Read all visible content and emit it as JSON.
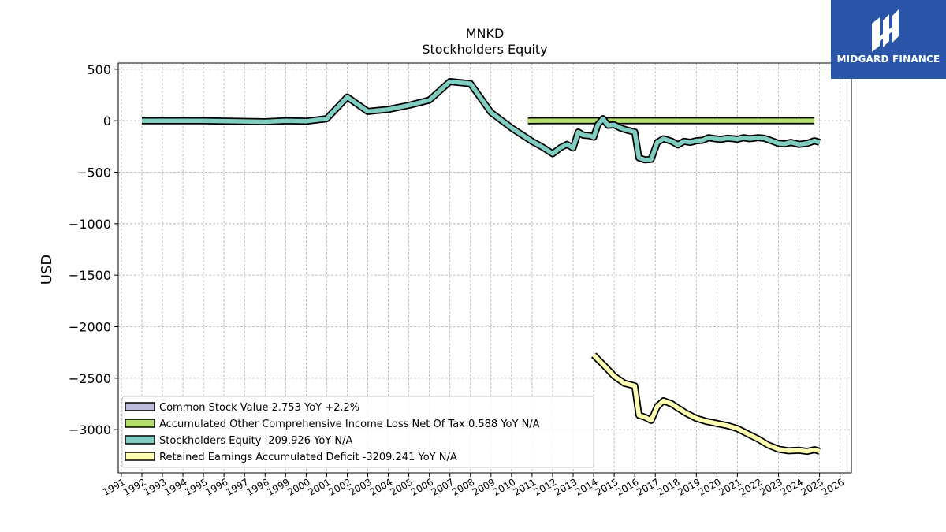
{
  "chart_data": {
    "type": "line",
    "title": "MNKD",
    "subtitle": "Stockholders  Equity",
    "ylabel": "USD",
    "xlabel": "",
    "xlim": [
      1990.85,
      2026.55
    ],
    "ylim": [
      -3420,
      560
    ],
    "grid": true,
    "legend_position": "lower-left",
    "y_ticks": [
      500,
      0,
      -500,
      -1000,
      -1500,
      -2000,
      -2500,
      -3000
    ],
    "y_tick_labels": [
      "500",
      "0",
      "−500",
      "−1000",
      "−1500",
      "−2000",
      "−2500",
      "−3000"
    ],
    "x_ticks": [
      1991,
      1992,
      1993,
      1994,
      1995,
      1996,
      1997,
      1998,
      1999,
      2000,
      2001,
      2002,
      2003,
      2004,
      2005,
      2006,
      2007,
      2008,
      2009,
      2010,
      2011,
      2012,
      2013,
      2014,
      2015,
      2016,
      2017,
      2018,
      2019,
      2020,
      2021,
      2022,
      2023,
      2024,
      2025,
      2026
    ],
    "x_tick_labels": [
      "1991",
      "1992",
      "1993",
      "1994",
      "1995",
      "1996",
      "1997",
      "1998",
      "1999",
      "2000",
      "2001",
      "2002",
      "2003",
      "2004",
      "2005",
      "2006",
      "2007",
      "2008",
      "2009",
      "2010",
      "2011",
      "2012",
      "2013",
      "2014",
      "2015",
      "2016",
      "2017",
      "2018",
      "2019",
      "2020",
      "2021",
      "2022",
      "2023",
      "2024",
      "2025",
      "2026"
    ],
    "series": [
      {
        "name": "Common Stock Value  2.753 YoY +2.2%",
        "color": "#bebada",
        "points": []
      },
      {
        "name": "Accumulated Other Comprehensive Income Loss Net Of Tax  0.588 YoY N/A",
        "color": "#b3de69",
        "points": [
          [
            2010.8,
            0
          ],
          [
            2011.5,
            0.5
          ],
          [
            2013,
            0.5
          ],
          [
            2015,
            0.6
          ],
          [
            2017,
            0.5
          ],
          [
            2019,
            0.6
          ],
          [
            2021,
            0.5
          ],
          [
            2023,
            0.6
          ],
          [
            2024.75,
            0.588
          ]
        ]
      },
      {
        "name": "Stockholders Equity  -209.926 YoY N/A",
        "color": "#80cdc1",
        "points": [
          [
            1992,
            0
          ],
          [
            1995,
            0
          ],
          [
            1998,
            -10
          ],
          [
            1999,
            0
          ],
          [
            2000,
            -5
          ],
          [
            2001,
            20
          ],
          [
            2002,
            230
          ],
          [
            2003,
            90
          ],
          [
            2004,
            110
          ],
          [
            2005,
            150
          ],
          [
            2006,
            200
          ],
          [
            2007,
            380
          ],
          [
            2008,
            360
          ],
          [
            2009,
            80
          ],
          [
            2010,
            -70
          ],
          [
            2011,
            -200
          ],
          [
            2011.5,
            -255
          ],
          [
            2012,
            -320
          ],
          [
            2012.4,
            -260
          ],
          [
            2012.7,
            -230
          ],
          [
            2013,
            -265
          ],
          [
            2013.25,
            -110
          ],
          [
            2013.5,
            -140
          ],
          [
            2013.8,
            -145
          ],
          [
            2014,
            -160
          ],
          [
            2014.2,
            -40
          ],
          [
            2014.45,
            20
          ],
          [
            2014.7,
            -45
          ],
          [
            2015,
            -40
          ],
          [
            2015.3,
            -70
          ],
          [
            2015.6,
            -90
          ],
          [
            2016,
            -110
          ],
          [
            2016.2,
            -360
          ],
          [
            2016.5,
            -380
          ],
          [
            2016.8,
            -375
          ],
          [
            2017.1,
            -210
          ],
          [
            2017.4,
            -175
          ],
          [
            2017.8,
            -200
          ],
          [
            2018.1,
            -235
          ],
          [
            2018.4,
            -200
          ],
          [
            2018.7,
            -210
          ],
          [
            2019.0,
            -195
          ],
          [
            2019.3,
            -190
          ],
          [
            2019.6,
            -165
          ],
          [
            2019.9,
            -175
          ],
          [
            2020.2,
            -180
          ],
          [
            2020.5,
            -170
          ],
          [
            2020.8,
            -175
          ],
          [
            2021.0,
            -180
          ],
          [
            2021.3,
            -165
          ],
          [
            2021.6,
            -175
          ],
          [
            2022.0,
            -165
          ],
          [
            2022.3,
            -170
          ],
          [
            2022.6,
            -190
          ],
          [
            2023.0,
            -220
          ],
          [
            2023.3,
            -225
          ],
          [
            2023.6,
            -210
          ],
          [
            2024.0,
            -230
          ],
          [
            2024.4,
            -220
          ],
          [
            2024.75,
            -195
          ],
          [
            2025.0,
            -209.926
          ]
        ]
      },
      {
        "name": "Retained Earnings Accumulated Deficit  -3209.241 YoY N/A",
        "color": "#ffffb3",
        "points": [
          [
            2014,
            -2275
          ],
          [
            2014.5,
            -2375
          ],
          [
            2015,
            -2480
          ],
          [
            2015.5,
            -2550
          ],
          [
            2016,
            -2575
          ],
          [
            2016.2,
            -2860
          ],
          [
            2016.5,
            -2880
          ],
          [
            2016.8,
            -2910
          ],
          [
            2017.1,
            -2775
          ],
          [
            2017.4,
            -2720
          ],
          [
            2017.8,
            -2750
          ],
          [
            2018.1,
            -2790
          ],
          [
            2018.5,
            -2840
          ],
          [
            2019,
            -2890
          ],
          [
            2019.5,
            -2920
          ],
          [
            2020,
            -2940
          ],
          [
            2020.5,
            -2960
          ],
          [
            2021,
            -2990
          ],
          [
            2021.5,
            -3040
          ],
          [
            2022,
            -3090
          ],
          [
            2022.5,
            -3150
          ],
          [
            2023,
            -3190
          ],
          [
            2023.5,
            -3205
          ],
          [
            2024,
            -3200
          ],
          [
            2024.4,
            -3210
          ],
          [
            2024.75,
            -3195
          ],
          [
            2025.0,
            -3209.241
          ]
        ]
      }
    ]
  },
  "logo": {
    "brand": "MIDGARD FINANCE",
    "icon": "midgard-monogram-icon"
  }
}
